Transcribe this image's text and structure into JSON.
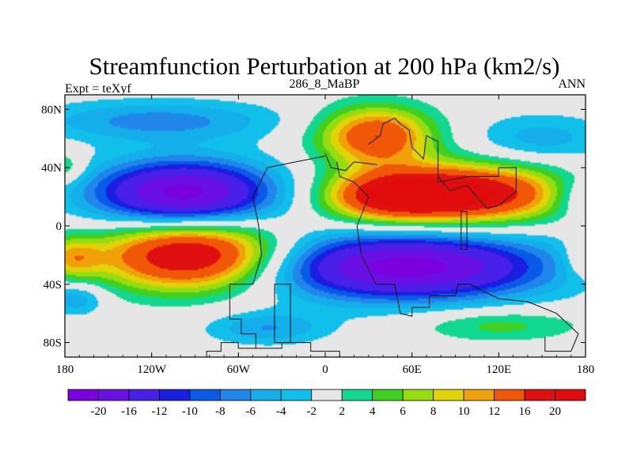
{
  "chart_data": {
    "type": "heatmap",
    "title": "Streamfunction Perturbation at 200 hPa (km2/s)",
    "left_label": "Expt = teXyf",
    "center_label": "286_8_MaBP",
    "right_label": "ANN",
    "x_ticks": [
      {
        "value": -180,
        "label": "180"
      },
      {
        "value": -120,
        "label": "120W"
      },
      {
        "value": -60,
        "label": "60W"
      },
      {
        "value": 0,
        "label": "0"
      },
      {
        "value": 60,
        "label": "60E"
      },
      {
        "value": 120,
        "label": "120E"
      },
      {
        "value": 180,
        "label": "180"
      }
    ],
    "y_ticks": [
      {
        "value": 80,
        "label": "80N"
      },
      {
        "value": 40,
        "label": "40N"
      },
      {
        "value": 0,
        "label": "0"
      },
      {
        "value": -40,
        "label": "40S"
      },
      {
        "value": -80,
        "label": "80S"
      }
    ],
    "xlim": [
      -180,
      180
    ],
    "ylim": [
      -90,
      90
    ],
    "contour_levels": [
      -20,
      -16,
      -12,
      -10,
      -8,
      -6,
      -4,
      -2,
      2,
      4,
      6,
      8,
      10,
      12,
      16,
      20
    ],
    "colorbar_labels": [
      "-20",
      "-16",
      "-12",
      "-10",
      "-8",
      "-6",
      "-4",
      "-2",
      "2",
      "4",
      "6",
      "8",
      "10",
      "12",
      "16",
      "20"
    ],
    "colors": [
      "#7a00e0",
      "#6a10e4",
      "#4820e8",
      "#1a1ee0",
      "#0a5ae8",
      "#2086ea",
      "#14aeea",
      "#10c0ea",
      "#e6e6e6",
      "#10d890",
      "#40d020",
      "#98dc10",
      "#e0d408",
      "#f0a008",
      "#f05808",
      "#e01010",
      "#e00c0c"
    ],
    "features": [
      {
        "kind": "trough",
        "lon": -98,
        "lat": 22,
        "amp": -22,
        "rlon": 44,
        "rlat": 16
      },
      {
        "kind": "ridge",
        "lon": -92,
        "lat": -20,
        "amp": 22,
        "rlon": 45,
        "rlat": 17
      },
      {
        "kind": "ridge",
        "lon": 95,
        "lat": 22,
        "amp": 22,
        "rlon": 48,
        "rlat": 14
      },
      {
        "kind": "ridge",
        "lon": 40,
        "lat": 20,
        "amp": 12,
        "rlon": 30,
        "rlat": 12
      },
      {
        "kind": "trough",
        "lon": 55,
        "lat": -28,
        "amp": -22,
        "rlon": 68,
        "rlat": 16
      },
      {
        "kind": "ridge",
        "lon": 35,
        "lat": 62,
        "amp": 16,
        "rlon": 28,
        "rlat": 14
      },
      {
        "kind": "trough",
        "lon": -115,
        "lat": 72,
        "amp": -7,
        "rlon": 60,
        "rlat": 10
      },
      {
        "kind": "trough",
        "lon": 150,
        "lat": 60,
        "amp": -5,
        "rlon": 35,
        "rlat": 12
      },
      {
        "kind": "trough",
        "lon": -40,
        "lat": -70,
        "amp": -6,
        "rlon": 30,
        "rlat": 8
      },
      {
        "kind": "ridge",
        "lon": 120,
        "lat": -68,
        "amp": 5,
        "rlon": 40,
        "rlat": 8
      },
      {
        "kind": "ridge",
        "lon": -175,
        "lat": -22,
        "amp": 8,
        "rlon": 14,
        "rlat": 10
      },
      {
        "kind": "ridge",
        "lon": 178,
        "lat": -22,
        "amp": 5,
        "rlon": 10,
        "rlat": 10
      },
      {
        "kind": "trough",
        "lon": -172,
        "lat": -50,
        "amp": -6,
        "rlon": 14,
        "rlat": 8
      },
      {
        "kind": "trough",
        "lon": 175,
        "lat": 20,
        "amp": -5,
        "rlon": 14,
        "rlat": 10
      },
      {
        "kind": "ridge",
        "lon": -180,
        "lat": 40,
        "amp": 5,
        "rlon": 10,
        "rlat": 8
      }
    ],
    "coastlines": [
      [
        [
          -82,
          -90
        ],
        [
          -82,
          -86
        ],
        [
          -72,
          -86
        ],
        [
          -72,
          -80
        ],
        [
          -60,
          -80
        ],
        [
          -60,
          -84
        ],
        [
          -30,
          -84
        ],
        [
          -30,
          -80
        ],
        [
          -10,
          -80
        ],
        [
          -10,
          -86
        ],
        [
          10,
          -86
        ],
        [
          10,
          -90
        ]
      ],
      [
        [
          -48,
          -84
        ],
        [
          -48,
          -74
        ],
        [
          -58,
          -74
        ],
        [
          -58,
          -64
        ],
        [
          -66,
          -64
        ],
        [
          -66,
          -40
        ],
        [
          -50,
          -40
        ],
        [
          -44,
          -20
        ],
        [
          -46,
          0
        ],
        [
          -50,
          20
        ],
        [
          -40,
          40
        ],
        [
          -20,
          44
        ],
        [
          0,
          48
        ]
      ],
      [
        [
          -35,
          -80
        ],
        [
          -35,
          -40
        ],
        [
          -24,
          -40
        ],
        [
          -24,
          -80
        ],
        [
          -35,
          -80
        ]
      ],
      [
        [
          8,
          44
        ],
        [
          10,
          34
        ],
        [
          20,
          30
        ],
        [
          30,
          20
        ],
        [
          22,
          0
        ],
        [
          25,
          -20
        ],
        [
          35,
          -40
        ],
        [
          48,
          -40
        ],
        [
          52,
          -60
        ],
        [
          60,
          -62
        ],
        [
          60,
          -56
        ],
        [
          72,
          -56
        ],
        [
          72,
          -48
        ],
        [
          90,
          -48
        ],
        [
          92,
          -40
        ],
        [
          100,
          -40
        ],
        [
          120,
          -50
        ],
        [
          140,
          -52
        ],
        [
          160,
          -60
        ],
        [
          175,
          -74
        ],
        [
          170,
          -86
        ],
        [
          152,
          -86
        ],
        [
          152,
          -76
        ]
      ],
      [
        [
          30,
          56
        ],
        [
          38,
          62
        ],
        [
          40,
          70
        ],
        [
          48,
          74
        ],
        [
          52,
          70
        ],
        [
          58,
          66
        ],
        [
          60,
          54
        ],
        [
          68,
          46
        ],
        [
          70,
          62
        ],
        [
          78,
          58
        ],
        [
          78,
          30
        ],
        [
          100,
          34
        ],
        [
          120,
          34
        ],
        [
          120,
          40
        ],
        [
          132,
          40
        ],
        [
          132,
          24
        ],
        [
          120,
          14
        ],
        [
          112,
          12
        ],
        [
          98,
          28
        ],
        [
          86,
          24
        ],
        [
          78,
          34
        ]
      ],
      [
        [
          94,
          10
        ],
        [
          94,
          -16
        ],
        [
          98,
          -16
        ],
        [
          98,
          10
        ],
        [
          94,
          10
        ]
      ],
      [
        [
          0,
          50
        ],
        [
          4,
          40
        ],
        [
          14,
          38
        ],
        [
          20,
          44
        ],
        [
          36,
          42
        ]
      ]
    ]
  }
}
